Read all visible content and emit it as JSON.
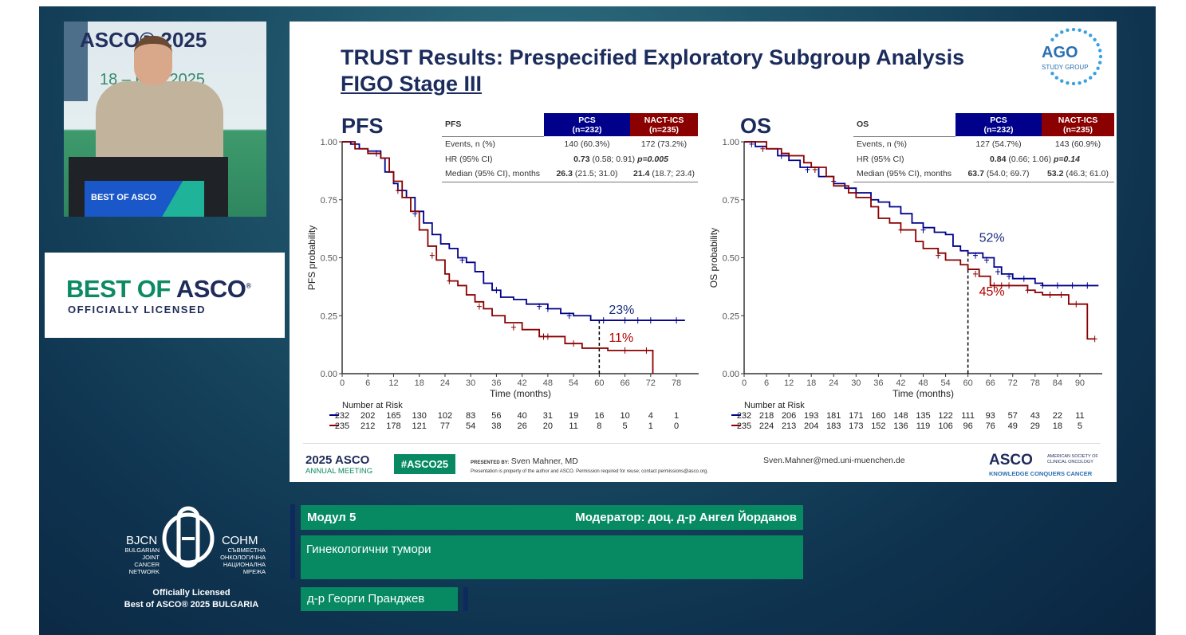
{
  "webcam": {
    "backdrop_title": "ASCO® 2025",
    "backdrop_date": "18 – юли 2025",
    "podium_logo": "BEST OF ASCO"
  },
  "best_of_asco": {
    "line1a": "BEST OF ",
    "line1b": "ASCO",
    "registered": "®",
    "line2": "OFFICIALLY LICENSED"
  },
  "slide": {
    "title": "TRUST Results: Prespecified Exploratory Subgroup Analysis",
    "subtitle": "FIGO Stage III",
    "ago_logo": {
      "name": "AGO",
      "sub": "STUDY GROUP"
    },
    "footer": {
      "meeting_year": "2025 ASCO",
      "meeting_label": "ANNUAL MEETING",
      "hashtag": "#ASCO25",
      "presented_by_label": "PRESENTED BY:",
      "presenter": "Sven Mahner, MD",
      "disclaimer": "Presentation is property of the author and ASCO. Permission required for reuse; contact permissions@asco.org.",
      "email": "Sven.Mahner@med.uni-muenchen.de",
      "asco_logo": "ASCO",
      "asco_society": "AMERICAN SOCIETY OF CLINICAL ONCOLOGY",
      "asco_tagline": "KNOWLEDGE CONQUERS CANCER"
    }
  },
  "colors": {
    "pcs": "#00008b",
    "nact": "#8b0000",
    "green": "#078a62"
  },
  "chart_data": [
    {
      "type": "line",
      "title": "PFS",
      "xlabel": "Time (months)",
      "ylabel": "PFS probability",
      "xlim": [
        0,
        82
      ],
      "ylim": [
        0,
        1
      ],
      "xticks": [
        0,
        6,
        12,
        18,
        24,
        30,
        36,
        42,
        48,
        54,
        60,
        66,
        72,
        78
      ],
      "yticks": [
        "0.00",
        "0.25",
        "0.50",
        "0.75",
        "1.00"
      ],
      "table": {
        "header": "PFS",
        "col1": "PCS",
        "col1n": "(n=232)",
        "col2": "NACT-ICS",
        "col2n": "(n=235)",
        "rows": [
          {
            "label": "Events, n (%)",
            "v1": "140 (60.3%)",
            "v2": "172 (73.2%)"
          },
          {
            "label": "HR (95% CI)",
            "hr_bold": "0.73",
            "hr_ci": " (0.58; 0.91) ",
            "p": "p=0.005"
          },
          {
            "label": "Median (95% CI), months",
            "v1b": "26.3",
            "v1": " (21.5; 31.0)",
            "v2b": "21.4",
            "v2": " (18.7; 23.4)"
          }
        ]
      },
      "landmark": 60,
      "annotations": [
        {
          "text": "23%",
          "series": 0,
          "y": 0.23
        },
        {
          "text": "11%",
          "series": 1,
          "y": 0.11
        }
      ],
      "risk_label": "Number at Risk",
      "series": [
        {
          "name": "PCS",
          "color": "#00008b",
          "risk": [
            232,
            202,
            165,
            130,
            102,
            83,
            56,
            40,
            31,
            19,
            16,
            10,
            4,
            1
          ],
          "steps": [
            [
              0,
              1
            ],
            [
              2,
              0.99
            ],
            [
              4,
              0.97
            ],
            [
              6,
              0.96
            ],
            [
              9,
              0.93
            ],
            [
              10,
              0.87
            ],
            [
              12,
              0.82
            ],
            [
              13,
              0.79
            ],
            [
              15,
              0.76
            ],
            [
              17,
              0.7
            ],
            [
              19,
              0.65
            ],
            [
              21,
              0.6
            ],
            [
              23,
              0.56
            ],
            [
              25,
              0.54
            ],
            [
              27,
              0.5
            ],
            [
              29,
              0.48
            ],
            [
              31,
              0.44
            ],
            [
              33,
              0.39
            ],
            [
              35,
              0.36
            ],
            [
              37,
              0.33
            ],
            [
              40,
              0.32
            ],
            [
              43,
              0.3
            ],
            [
              48,
              0.28
            ],
            [
              51,
              0.26
            ],
            [
              54,
              0.25
            ],
            [
              58,
              0.23
            ],
            [
              80,
              0.23
            ]
          ],
          "censor": [
            [
              8,
              0.95
            ],
            [
              17,
              0.69
            ],
            [
              28,
              0.49
            ],
            [
              36,
              0.36
            ],
            [
              46,
              0.29
            ],
            [
              48,
              0.28
            ],
            [
              53,
              0.25
            ],
            [
              61,
              0.23
            ],
            [
              66,
              0.23
            ],
            [
              69,
              0.23
            ],
            [
              72,
              0.23
            ],
            [
              78,
              0.23
            ]
          ]
        },
        {
          "name": "NACT-ICS",
          "color": "#8b0000",
          "risk": [
            235,
            212,
            178,
            121,
            77,
            54,
            38,
            26,
            20,
            11,
            8,
            5,
            1,
            0
          ],
          "steps": [
            [
              0,
              1
            ],
            [
              3,
              0.97
            ],
            [
              6,
              0.95
            ],
            [
              9,
              0.93
            ],
            [
              11,
              0.87
            ],
            [
              12,
              0.83
            ],
            [
              14,
              0.76
            ],
            [
              16,
              0.7
            ],
            [
              18,
              0.62
            ],
            [
              20,
              0.55
            ],
            [
              22,
              0.49
            ],
            [
              24,
              0.43
            ],
            [
              25,
              0.4
            ],
            [
              27,
              0.38
            ],
            [
              29,
              0.34
            ],
            [
              31,
              0.31
            ],
            [
              33,
              0.28
            ],
            [
              35,
              0.25
            ],
            [
              38,
              0.22
            ],
            [
              42,
              0.19
            ],
            [
              46,
              0.16
            ],
            [
              52,
              0.13
            ],
            [
              56,
              0.11
            ],
            [
              62,
              0.1
            ],
            [
              72.5,
              0.1
            ],
            [
              72.5,
              0
            ]
          ],
          "censor": [
            [
              13,
              0.79
            ],
            [
              21,
              0.51
            ],
            [
              25,
              0.4
            ],
            [
              32,
              0.29
            ],
            [
              40,
              0.2
            ],
            [
              47,
              0.16
            ],
            [
              48,
              0.16
            ],
            [
              54,
              0.13
            ],
            [
              66,
              0.1
            ],
            [
              71,
              0.1
            ]
          ]
        }
      ]
    },
    {
      "type": "line",
      "title": "OS",
      "xlabel": "Time (months)",
      "ylabel": "OS probability",
      "xlim": [
        0,
        95
      ],
      "ylim": [
        0,
        1
      ],
      "xticks": [
        0,
        6,
        12,
        18,
        24,
        30,
        36,
        42,
        48,
        54,
        60,
        66,
        72,
        78,
        84,
        90
      ],
      "yticks": [
        "0.00",
        "0.25",
        "0.50",
        "0.75",
        "1.00"
      ],
      "table": {
        "header": "OS",
        "col1": "PCS",
        "col1n": "(n=232)",
        "col2": "NACT-ICS",
        "col2n": "(n=235)",
        "rows": [
          {
            "label": "Events, n (%)",
            "v1": "127 (54.7%)",
            "v2": "143 (60.9%)"
          },
          {
            "label": "HR (95% CI)",
            "hr_bold": "0.84",
            "hr_ci": " (0.66; 1.06) ",
            "p": "p=0.14"
          },
          {
            "label": "Median (95% CI), months",
            "v1b": "63.7",
            "v1": " (54.0; 69.7)",
            "v2b": "53.2",
            "v2": " (46.3; 61.0)"
          }
        ]
      },
      "landmark": 60,
      "annotations": [
        {
          "text": "52%",
          "series": 0,
          "y": 0.52
        },
        {
          "text": "45%",
          "series": 1,
          "y": 0.45
        }
      ],
      "risk_label": "Number at Risk",
      "series": [
        {
          "name": "PCS",
          "color": "#00008b",
          "risk": [
            232,
            218,
            206,
            193,
            181,
            171,
            160,
            148,
            135,
            122,
            111,
            93,
            57,
            43,
            22,
            11
          ],
          "steps": [
            [
              0,
              1
            ],
            [
              3,
              0.98
            ],
            [
              6,
              0.97
            ],
            [
              9,
              0.94
            ],
            [
              12,
              0.92
            ],
            [
              15,
              0.89
            ],
            [
              20,
              0.85
            ],
            [
              24,
              0.82
            ],
            [
              27,
              0.8
            ],
            [
              30,
              0.78
            ],
            [
              34,
              0.75
            ],
            [
              36,
              0.74
            ],
            [
              39,
              0.72
            ],
            [
              42,
              0.69
            ],
            [
              45,
              0.65
            ],
            [
              48,
              0.63
            ],
            [
              51,
              0.61
            ],
            [
              54,
              0.6
            ],
            [
              56,
              0.55
            ],
            [
              58,
              0.53
            ],
            [
              60,
              0.52
            ],
            [
              64,
              0.5
            ],
            [
              67,
              0.46
            ],
            [
              69,
              0.43
            ],
            [
              72,
              0.41
            ],
            [
              78,
              0.39
            ],
            [
              80,
              0.38
            ],
            [
              95,
              0.38
            ]
          ],
          "censor": [
            [
              2,
              0.99
            ],
            [
              10,
              0.94
            ],
            [
              17,
              0.88
            ],
            [
              24,
              0.83
            ],
            [
              48,
              0.62
            ],
            [
              62,
              0.51
            ],
            [
              65,
              0.49
            ],
            [
              68,
              0.44
            ],
            [
              71,
              0.42
            ],
            [
              75,
              0.41
            ],
            [
              80,
              0.38
            ],
            [
              84,
              0.38
            ],
            [
              88,
              0.38
            ],
            [
              92,
              0.38
            ]
          ]
        },
        {
          "name": "NACT-ICS",
          "color": "#8b0000",
          "risk": [
            235,
            224,
            213,
            204,
            183,
            173,
            152,
            136,
            119,
            106,
            96,
            76,
            49,
            29,
            18,
            5
          ],
          "steps": [
            [
              0,
              1
            ],
            [
              6,
              0.97
            ],
            [
              10,
              0.95
            ],
            [
              12,
              0.94
            ],
            [
              16,
              0.91
            ],
            [
              18,
              0.89
            ],
            [
              22,
              0.85
            ],
            [
              24,
              0.81
            ],
            [
              28,
              0.78
            ],
            [
              30,
              0.76
            ],
            [
              34,
              0.72
            ],
            [
              36,
              0.67
            ],
            [
              39,
              0.65
            ],
            [
              42,
              0.62
            ],
            [
              46,
              0.57
            ],
            [
              48,
              0.54
            ],
            [
              52,
              0.52
            ],
            [
              54,
              0.49
            ],
            [
              58,
              0.47
            ],
            [
              60,
              0.45
            ],
            [
              63,
              0.42
            ],
            [
              66,
              0.38
            ],
            [
              72,
              0.38
            ],
            [
              76,
              0.36
            ],
            [
              78,
              0.35
            ],
            [
              80,
              0.34
            ],
            [
              87,
              0.34
            ],
            [
              87,
              0.3
            ],
            [
              92,
              0.3
            ],
            [
              92,
              0.15
            ],
            [
              94,
              0.15
            ]
          ],
          "censor": [
            [
              5,
              0.97
            ],
            [
              19,
              0.88
            ],
            [
              42,
              0.62
            ],
            [
              52,
              0.51
            ],
            [
              62,
              0.43
            ],
            [
              67,
              0.38
            ],
            [
              69,
              0.38
            ],
            [
              71,
              0.38
            ],
            [
              76,
              0.36
            ],
            [
              82,
              0.34
            ],
            [
              85,
              0.34
            ],
            [
              89,
              0.3
            ],
            [
              94,
              0.15
            ]
          ]
        }
      ]
    }
  ],
  "lower_third": {
    "module": "Модул 5",
    "moderator": "Модератор: доц. д-р Ангел Йорданов",
    "topic": "Гинекологични тумори",
    "speaker": "д-р Георги Пранджев"
  },
  "bjcn": {
    "left_abbr": "BJCN",
    "left_lines": [
      "BULGARIAN",
      "JOINT",
      "CANCER",
      "NETWORK"
    ],
    "right_abbr": "СОНМ",
    "right_lines": [
      "СЪВМЕСТНА",
      "ОНКОЛОГИЧНА",
      "НАЦИОНАЛНА",
      "МРЕЖА"
    ],
    "caption1": "Officially Licensed",
    "caption2": "Best of ASCO® 2025 BULGARIA"
  }
}
